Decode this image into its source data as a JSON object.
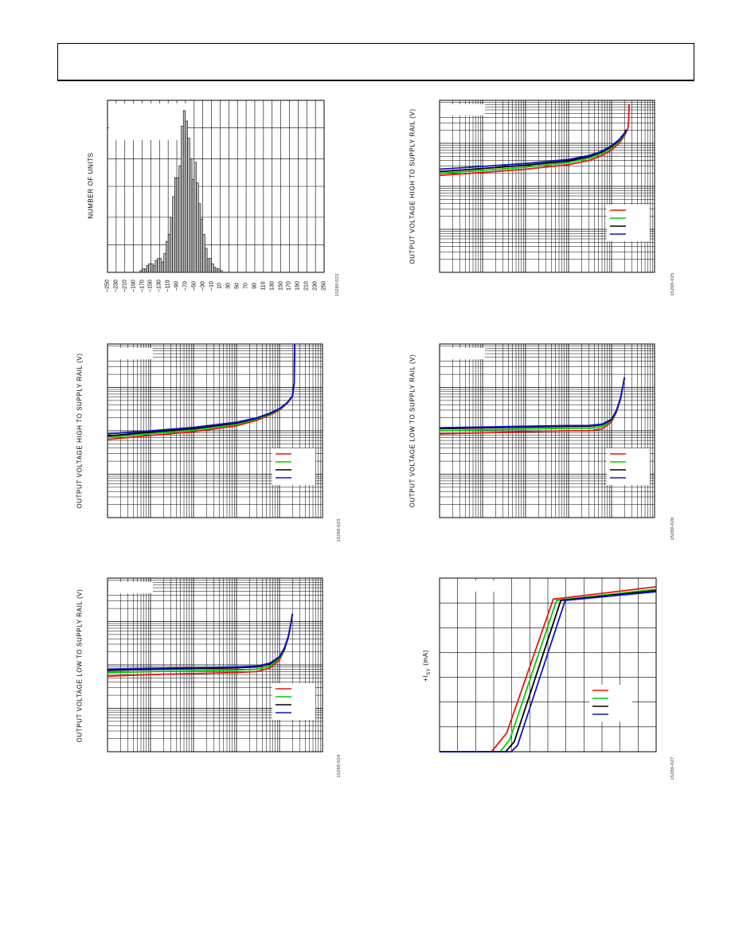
{
  "chart_data": [
    {
      "id": "c1",
      "type": "bar",
      "xlabel": "",
      "ylabel": "NUMBER OF UNITS",
      "figure_code": "15269-022",
      "x_tick_labels": [
        "-250",
        "-230",
        "-210",
        "-190",
        "-170",
        "-150",
        "-130",
        "-110",
        "-90",
        "-70",
        "-50",
        "-30",
        "-10",
        "10",
        "30",
        "50",
        "70",
        "90",
        "110",
        "130",
        "150",
        "170",
        "190",
        "210",
        "230",
        "250"
      ],
      "xlim": [
        -250,
        250
      ],
      "ylim": [
        0,
        100
      ],
      "bin_width": 5,
      "bin_starts": [
        -175,
        -170,
        -165,
        -160,
        -155,
        -150,
        -145,
        -140,
        -135,
        -130,
        -125,
        -120,
        -115,
        -110,
        -105,
        -100,
        -95,
        -90,
        -85,
        -80,
        -75,
        -70,
        -65,
        -60,
        -55,
        -50,
        -45,
        -40,
        -35,
        -30,
        -25,
        -20,
        -15,
        -10,
        -5,
        0,
        5,
        10,
        15,
        20,
        25,
        30,
        35,
        40,
        45
      ],
      "values": [
        1,
        2,
        2,
        4,
        5,
        5,
        4,
        7,
        8,
        8,
        6,
        11,
        18,
        22,
        32,
        44,
        55,
        55,
        62,
        85,
        94,
        88,
        78,
        66,
        54,
        64,
        52,
        40,
        31,
        22,
        14,
        8,
        8,
        5,
        3,
        2,
        2,
        1,
        0,
        0,
        0,
        0,
        0,
        0,
        0
      ],
      "legend_box": true,
      "grid": true
    },
    {
      "id": "c2",
      "type": "line",
      "xscale": "log",
      "yscale": "log",
      "ylabel": "OUTPUT VOLTAGE HIGH TO SUPPLY RAIL (V)",
      "figure_code": "15269-023",
      "xlim": [
        0.001,
        100
      ],
      "ylim": [
        0.001,
        10
      ],
      "series": [
        {
          "color": "#ee1111",
          "x": [
            0.001,
            0.01,
            0.1,
            1,
            3,
            6,
            10,
            15,
            20,
            22,
            22.5
          ],
          "y": [
            0.063,
            0.078,
            0.095,
            0.13,
            0.175,
            0.23,
            0.3,
            0.42,
            0.62,
            1.3,
            10
          ]
        },
        {
          "color": "#00cc00",
          "x": [
            0.001,
            0.01,
            0.1,
            1,
            3,
            6,
            10,
            15,
            20,
            22,
            22.5
          ],
          "y": [
            0.07,
            0.086,
            0.104,
            0.14,
            0.185,
            0.24,
            0.31,
            0.43,
            0.63,
            1.3,
            10
          ]
        },
        {
          "color": "#000000",
          "x": [
            0.001,
            0.01,
            0.1,
            1,
            3,
            6,
            10,
            15,
            20,
            22,
            22.5
          ],
          "y": [
            0.076,
            0.093,
            0.112,
            0.15,
            0.195,
            0.25,
            0.32,
            0.44,
            0.64,
            1.3,
            10
          ]
        },
        {
          "color": "#1111cc",
          "x": [
            0.001,
            0.01,
            0.1,
            1,
            3,
            6,
            10,
            15,
            20,
            22,
            22.5
          ],
          "y": [
            0.085,
            0.1,
            0.12,
            0.158,
            0.2,
            0.255,
            0.325,
            0.44,
            0.64,
            1.3,
            10
          ]
        }
      ],
      "legend_box": true,
      "legend_placement": "bottom-right",
      "top_left_box": true,
      "grid": true
    },
    {
      "id": "c3",
      "type": "line",
      "xscale": "log",
      "yscale": "log",
      "ylabel": "OUTPUT VOLTAGE LOW TO SUPPLY RAIL (V)",
      "figure_code": "15269-024",
      "xlim": [
        0.001,
        100
      ],
      "ylim": [
        0.001,
        10
      ],
      "series": [
        {
          "color": "#ee1111",
          "x": [
            0.001,
            0.01,
            0.1,
            1,
            3,
            6,
            10,
            13,
            16,
            18,
            20
          ],
          "y": [
            0.055,
            0.06,
            0.063,
            0.067,
            0.07,
            0.085,
            0.13,
            0.22,
            0.42,
            0.8,
            1.5
          ]
        },
        {
          "color": "#00cc00",
          "x": [
            0.001,
            0.01,
            0.1,
            1,
            3,
            6,
            10,
            13,
            16,
            18,
            20
          ],
          "y": [
            0.066,
            0.07,
            0.073,
            0.076,
            0.08,
            0.095,
            0.14,
            0.23,
            0.43,
            0.8,
            1.5
          ]
        },
        {
          "color": "#000000",
          "x": [
            0.001,
            0.01,
            0.1,
            1,
            3,
            6,
            10,
            13,
            16,
            18,
            20
          ],
          "y": [
            0.075,
            0.079,
            0.082,
            0.086,
            0.09,
            0.105,
            0.15,
            0.24,
            0.44,
            0.8,
            1.5
          ]
        },
        {
          "color": "#1111cc",
          "x": [
            0.001,
            0.01,
            0.1,
            1,
            3,
            6,
            10,
            13,
            16,
            18,
            20
          ],
          "y": [
            0.08,
            0.083,
            0.086,
            0.09,
            0.094,
            0.11,
            0.155,
            0.25,
            0.45,
            0.8,
            1.5
          ]
        }
      ],
      "legend_box": true,
      "legend_placement": "bottom-right",
      "top_left_box": true,
      "grid": true
    },
    {
      "id": "c4",
      "type": "line",
      "xscale": "log",
      "yscale": "log",
      "ylabel": "OUTPUT VOLTAGE HIGH TO SUPPLY RAIL (V)",
      "figure_code": "15269-025",
      "xlim": [
        0.001,
        100
      ],
      "ylim": [
        0.001,
        10
      ],
      "series": [
        {
          "color": "#ee1111",
          "x": [
            0.001,
            0.01,
            0.1,
            1,
            3,
            6,
            10,
            15,
            20,
            24,
            25,
            25.5
          ],
          "y": [
            0.18,
            0.21,
            0.25,
            0.32,
            0.4,
            0.52,
            0.7,
            1.0,
            1.5,
            2.2,
            3.5,
            8
          ]
        },
        {
          "color": "#00cc00",
          "x": [
            0.001,
            0.01,
            0.1,
            1,
            3,
            6,
            10,
            15,
            20,
            22
          ],
          "y": [
            0.2,
            0.235,
            0.28,
            0.36,
            0.45,
            0.58,
            0.78,
            1.1,
            1.6,
            2.1
          ]
        },
        {
          "color": "#000000",
          "x": [
            0.001,
            0.01,
            0.1,
            1,
            3,
            6,
            10,
            15,
            20,
            22
          ],
          "y": [
            0.22,
            0.26,
            0.31,
            0.39,
            0.49,
            0.63,
            0.84,
            1.18,
            1.7,
            2.1
          ]
        },
        {
          "color": "#1111cc",
          "x": [
            0.001,
            0.01,
            0.1,
            1,
            3,
            6,
            10,
            15,
            20,
            22
          ],
          "y": [
            0.25,
            0.29,
            0.34,
            0.42,
            0.52,
            0.66,
            0.88,
            1.22,
            1.75,
            2.1
          ]
        }
      ],
      "legend_box": true,
      "legend_placement": "bottom-right",
      "top_left_box": true,
      "grid": true
    },
    {
      "id": "c5",
      "type": "line",
      "xscale": "log",
      "yscale": "log",
      "ylabel": "OUTPUT VOLTAGE LOW TO SUPPLY RAIL (V)",
      "figure_code": "15269-026",
      "xlim": [
        0.001,
        100
      ],
      "ylim": [
        0.001,
        10
      ],
      "series": [
        {
          "color": "#ee1111",
          "x": [
            0.001,
            0.01,
            0.1,
            1,
            3,
            6,
            10,
            13,
            16,
            18,
            20
          ],
          "y": [
            0.085,
            0.09,
            0.095,
            0.1,
            0.1,
            0.11,
            0.16,
            0.27,
            0.52,
            0.95,
            1.7
          ]
        },
        {
          "color": "#00cc00",
          "x": [
            0.001,
            0.01,
            0.1,
            1,
            3,
            6,
            10,
            13,
            16,
            18,
            20
          ],
          "y": [
            0.1,
            0.105,
            0.11,
            0.115,
            0.115,
            0.125,
            0.17,
            0.28,
            0.53,
            0.95,
            1.7
          ]
        },
        {
          "color": "#000000",
          "x": [
            0.001,
            0.01,
            0.1,
            1,
            3,
            6,
            10,
            13,
            16,
            18,
            20
          ],
          "y": [
            0.112,
            0.117,
            0.122,
            0.127,
            0.128,
            0.138,
            0.18,
            0.29,
            0.54,
            0.95,
            1.7
          ]
        },
        {
          "color": "#1111cc",
          "x": [
            0.001,
            0.01,
            0.1,
            1,
            3,
            6,
            10,
            13,
            16,
            18,
            20
          ],
          "y": [
            0.118,
            0.122,
            0.127,
            0.132,
            0.133,
            0.142,
            0.185,
            0.3,
            0.55,
            0.95,
            1.7
          ]
        }
      ],
      "legend_box": true,
      "legend_placement": "bottom-right",
      "top_left_box": true,
      "grid": true
    },
    {
      "id": "c6",
      "type": "line",
      "xscale": "linear",
      "yscale": "linear",
      "ylabel_main": "+I",
      "ylabel_sub": "SY",
      "ylabel_unit": " (mA)",
      "figure_code": "15269-027",
      "xlim": [
        0,
        20
      ],
      "ylim": [
        0,
        14
      ],
      "series": [
        {
          "color": "#ee1111",
          "x": [
            0,
            4.8,
            6.2,
            10.5,
            20
          ],
          "y": [
            0,
            0,
            1.5,
            12.3,
            13.3
          ]
        },
        {
          "color": "#00cc00",
          "x": [
            0,
            5.6,
            6.5,
            10.8,
            20
          ],
          "y": [
            0,
            0,
            1.0,
            12.2,
            13.1
          ]
        },
        {
          "color": "#000000",
          "x": [
            0,
            6.1,
            6.9,
            11.2,
            20
          ],
          "y": [
            0,
            0,
            0.8,
            12.2,
            13.0
          ]
        },
        {
          "color": "#1111cc",
          "x": [
            0,
            6.6,
            7.2,
            11.6,
            20
          ],
          "y": [
            0,
            0,
            0.5,
            12.2,
            12.9
          ]
        }
      ],
      "legend_box": true,
      "legend_placement": "bottom-right",
      "top_left_box": true,
      "grid": true
    }
  ]
}
